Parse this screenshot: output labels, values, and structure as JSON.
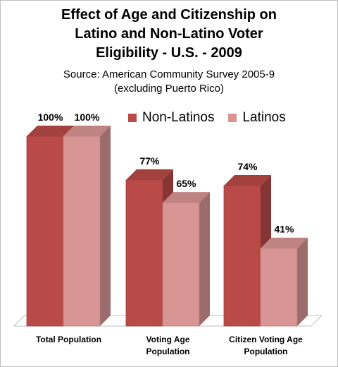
{
  "chart_data": {
    "type": "bar",
    "title_lines": [
      "Effect of Age and Citizenship on",
      "Latino and Non-Latino Voter",
      "Eligibility - U.S. - 2009"
    ],
    "subtitle_lines": [
      "Source: American Community Survey 2005-9",
      "(excluding Puerto Rico)"
    ],
    "categories": [
      [
        "Total Population"
      ],
      [
        "Voting Age",
        "Population"
      ],
      [
        "Citizen Voting Age",
        "Population"
      ]
    ],
    "series": [
      {
        "name": "Non-Latinos",
        "values": [
          100,
          77,
          74
        ],
        "labels": [
          "100%",
          "77%",
          "74%"
        ],
        "color": "#b94a48"
      },
      {
        "name": "Latinos",
        "values": [
          100,
          65,
          41
        ],
        "labels": [
          "100%",
          "65%",
          "41%"
        ],
        "color": "#d99594"
      }
    ],
    "ylim": [
      0,
      100
    ],
    "grid": false,
    "legend_position": "top-right",
    "style": "3d-bars"
  }
}
